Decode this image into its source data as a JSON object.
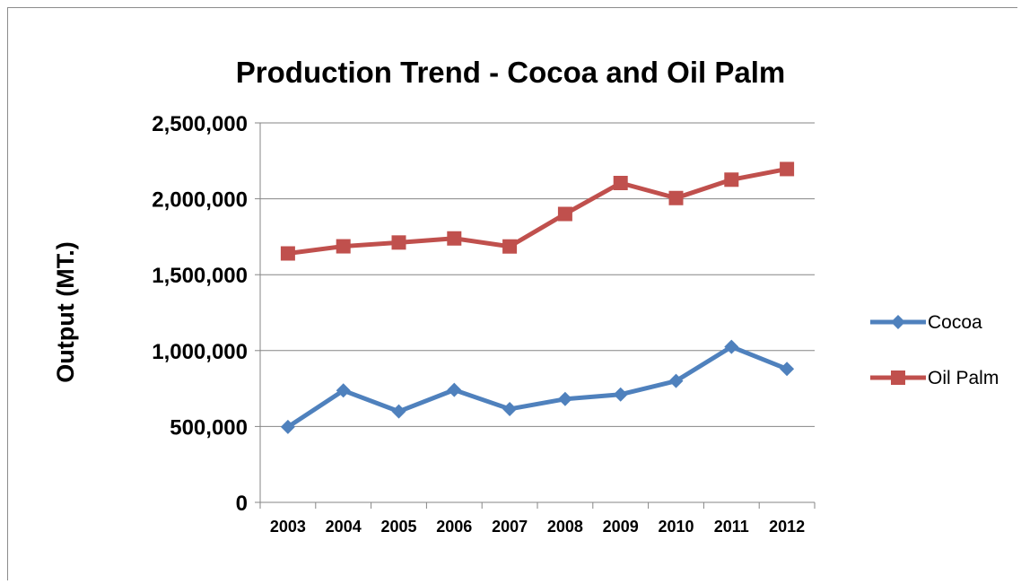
{
  "chart_data": {
    "type": "line",
    "title": "Production Trend - Cocoa and Oil Palm",
    "xlabel": "",
    "ylabel": "Output (MT.)",
    "categories": [
      "2003",
      "2004",
      "2005",
      "2006",
      "2007",
      "2008",
      "2009",
      "2010",
      "2011",
      "2012"
    ],
    "ylim": [
      0,
      2500000
    ],
    "yticks": [
      0,
      500000,
      1000000,
      1500000,
      2000000,
      2500000
    ],
    "ytick_labels": [
      "0",
      "500,000",
      "1,000,000",
      "1,500,000",
      "2,000,000",
      "2,500,000"
    ],
    "grid": true,
    "legend": "right",
    "series": [
      {
        "name": "Cocoa",
        "color": "#4f81bd",
        "marker": "diamond",
        "values": [
          497000,
          737000,
          599000,
          741000,
          615000,
          681000,
          711000,
          800000,
          1025000,
          879000
        ]
      },
      {
        "name": "Oil Palm",
        "color": "#c0504d",
        "marker": "square",
        "values": [
          1640000,
          1687000,
          1712000,
          1739000,
          1686000,
          1900000,
          2104000,
          2005000,
          2126000,
          2196000
        ]
      }
    ]
  }
}
